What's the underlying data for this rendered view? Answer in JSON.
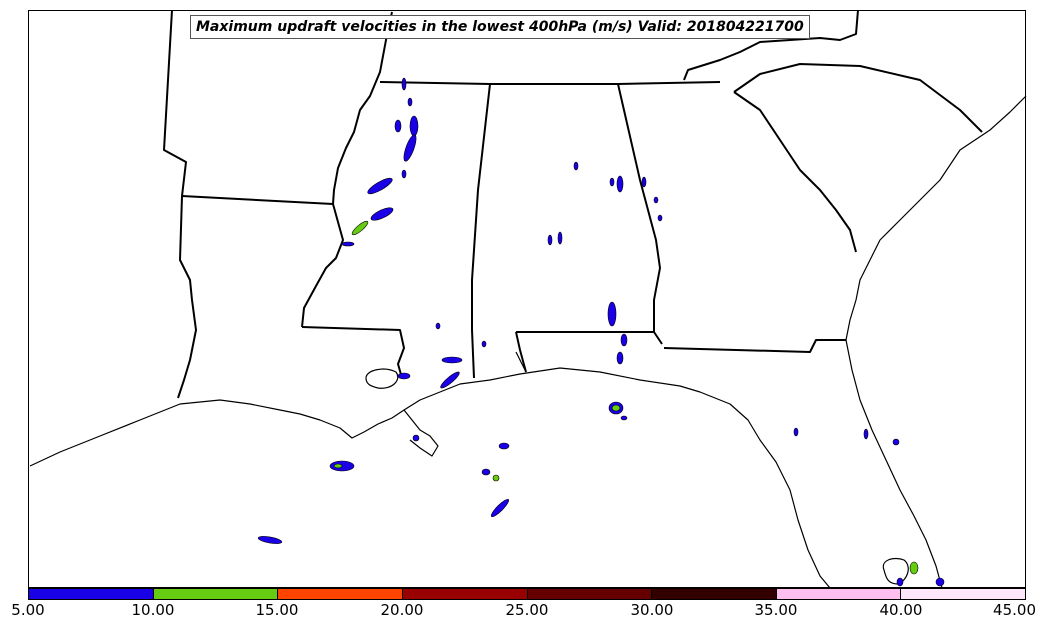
{
  "title": "Maximum updraft velocities in the lowest 400hPa (m/s) Valid: 201804221700",
  "colorbar": {
    "ticks": [
      "5.00",
      "10.00",
      "15.00",
      "20.00",
      "25.00",
      "30.00",
      "35.00",
      "40.00",
      "45.00"
    ],
    "colors": [
      "#1a00e6",
      "#66cc11",
      "#ff4400",
      "#990000",
      "#660000",
      "#330000",
      "#ffc0f0",
      "#ffe6fa"
    ]
  }
}
